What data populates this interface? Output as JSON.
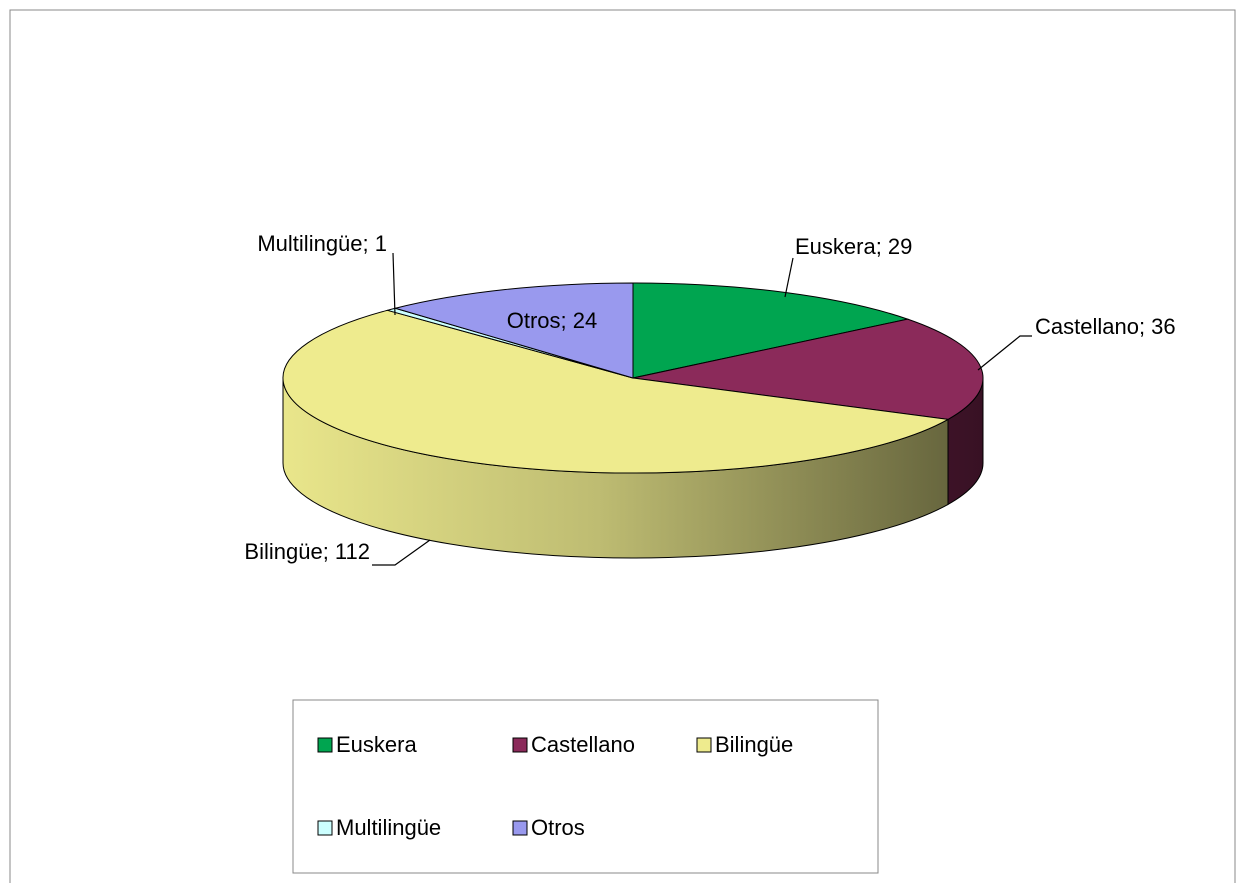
{
  "chart_data": {
    "type": "pie3d",
    "categories": [
      "Euskera",
      "Castellano",
      "Bilingüe",
      "Multilingüe",
      "Otros"
    ],
    "values": [
      29,
      36,
      112,
      1,
      24
    ],
    "value_labels": [
      "Euskera; 29",
      "Castellano; 36",
      "Bilingüe; 112",
      "Multilingüe; 1",
      "Otros; 24"
    ],
    "colors": [
      "#00a550",
      "#8b2a5a",
      "#eeeb8e",
      "#ccffff",
      "#9999ee"
    ],
    "legend": "bottom"
  }
}
